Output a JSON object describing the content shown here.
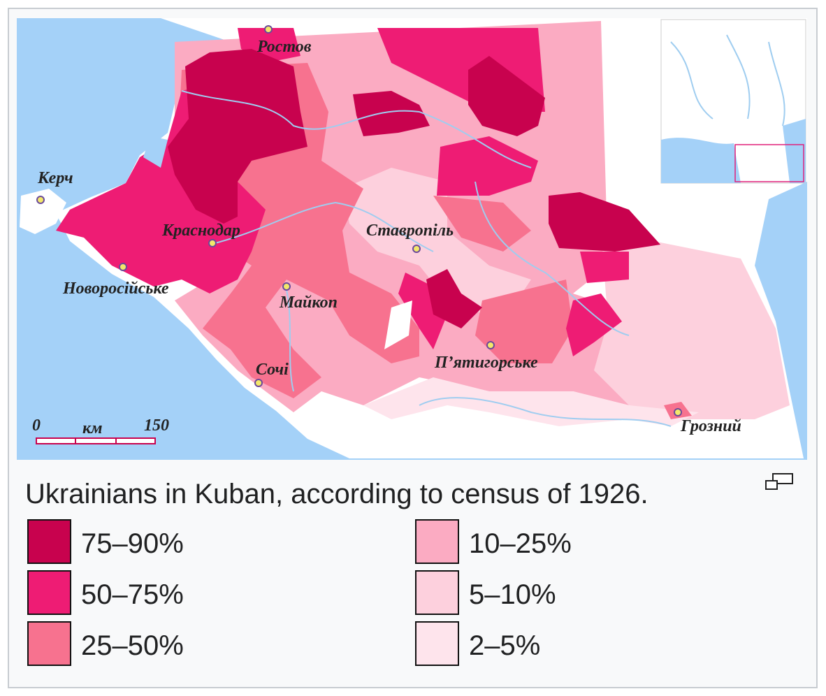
{
  "map_labels": [
    "Ростов",
    "Керч",
    "Краснодар",
    "Новоросійське",
    "Майкоп",
    "Ставропіль",
    "Сочі",
    "П’ятигорське",
    "Грозний"
  ],
  "scale": {
    "start": "0",
    "unit": "км",
    "end": "150"
  },
  "caption": "Ukrainians in Kuban, according to census of 1926.",
  "legend": [
    {
      "label": "75–90%",
      "color": "#c8024e"
    },
    {
      "label": "50–75%",
      "color": "#ee1c74"
    },
    {
      "label": "25–50%",
      "color": "#f7728f"
    },
    {
      "label": "10–25%",
      "color": "#fbabc2"
    },
    {
      "label": "5–10%",
      "color": "#fdd0dd"
    },
    {
      "label": "2–5%",
      "color": "#fee4ec"
    }
  ]
}
